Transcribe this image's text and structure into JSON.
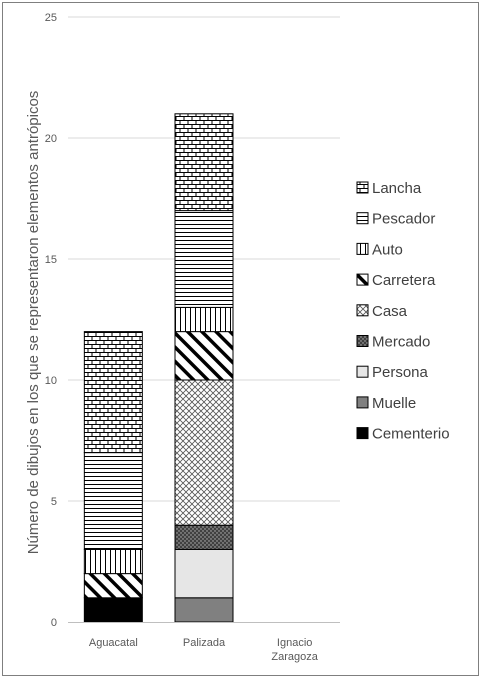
{
  "chart_data": {
    "type": "bar",
    "stacked": true,
    "categories": [
      "Aguacatal",
      "Palizada",
      "Ignacio\nZaragoza"
    ],
    "ylabel": "Número de dibujos en los que se representaron elementos antrópicos",
    "xlabel": "",
    "ylim": [
      0,
      25
    ],
    "yticks": [
      0,
      5,
      10,
      15,
      20,
      25
    ],
    "grid": true,
    "legend_position": "right",
    "series": [
      {
        "name": "Cementerio",
        "values": [
          1,
          0,
          0
        ],
        "pattern": "solid-black"
      },
      {
        "name": "Muelle",
        "values": [
          0,
          1,
          0
        ],
        "pattern": "solid-gray"
      },
      {
        "name": "Persona",
        "values": [
          0,
          2,
          0
        ],
        "pattern": "light-gray"
      },
      {
        "name": "Mercado",
        "values": [
          0,
          1,
          0
        ],
        "pattern": "dotted-dark"
      },
      {
        "name": "Casa",
        "values": [
          0,
          6,
          0
        ],
        "pattern": "crosshatch"
      },
      {
        "name": "Carretera",
        "values": [
          1,
          2,
          0
        ],
        "pattern": "diagonal"
      },
      {
        "name": "Auto",
        "values": [
          1,
          1,
          0
        ],
        "pattern": "vertical"
      },
      {
        "name": "Pescador",
        "values": [
          4,
          4,
          0
        ],
        "pattern": "horizontal"
      },
      {
        "name": "Lancha",
        "values": [
          5,
          4,
          0
        ],
        "pattern": "brick"
      }
    ],
    "legend_order": [
      "Lancha",
      "Pescador",
      "Auto",
      "Carretera",
      "Casa",
      "Mercado",
      "Persona",
      "Muelle",
      "Cementerio"
    ]
  }
}
